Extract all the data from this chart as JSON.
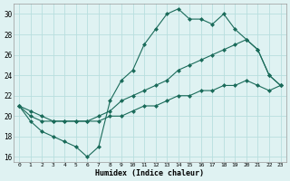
{
  "xlabel": "Humidex (Indice chaleur)",
  "bg_color": "#dff2f2",
  "grid_color": "#b8dede",
  "line_color": "#1a6b5a",
  "xlim": [
    -0.5,
    23.5
  ],
  "ylim": [
    15.5,
    31.0
  ],
  "xticks": [
    0,
    1,
    2,
    3,
    4,
    5,
    6,
    7,
    8,
    9,
    10,
    11,
    12,
    13,
    14,
    15,
    16,
    17,
    18,
    19,
    20,
    21,
    22,
    23
  ],
  "yticks": [
    16,
    18,
    20,
    22,
    24,
    26,
    28,
    30
  ],
  "line1_x": [
    0,
    1,
    2,
    3,
    4,
    5,
    6,
    7,
    8,
    9,
    10,
    11,
    12,
    13,
    14,
    15,
    16,
    17,
    18,
    19,
    20,
    21,
    22,
    23
  ],
  "line1_y": [
    21.0,
    19.5,
    18.5,
    18.0,
    17.5,
    17.0,
    16.0,
    17.0,
    21.5,
    23.5,
    24.5,
    27.0,
    28.5,
    30.0,
    30.5,
    29.5,
    29.5,
    29.0,
    30.0,
    28.5,
    27.5,
    26.5,
    24.0,
    23.0
  ],
  "line2_x": [
    0,
    1,
    2,
    3,
    4,
    5,
    6,
    7,
    8,
    9,
    10,
    11,
    12,
    13,
    14,
    15,
    16,
    17,
    18,
    19,
    20,
    21,
    22,
    23
  ],
  "line2_y": [
    21.0,
    20.0,
    19.5,
    19.5,
    19.5,
    19.5,
    19.5,
    20.0,
    20.5,
    21.5,
    22.0,
    22.5,
    23.0,
    23.5,
    24.5,
    25.0,
    25.5,
    26.0,
    26.5,
    27.0,
    27.5,
    26.5,
    24.0,
    23.0
  ],
  "line3_x": [
    0,
    1,
    2,
    3,
    4,
    5,
    6,
    7,
    8,
    9,
    10,
    11,
    12,
    13,
    14,
    15,
    16,
    17,
    18,
    19,
    20,
    21,
    22,
    23
  ],
  "line3_y": [
    21.0,
    20.5,
    20.0,
    19.5,
    19.5,
    19.5,
    19.5,
    19.5,
    20.0,
    20.0,
    20.5,
    21.0,
    21.0,
    21.5,
    22.0,
    22.0,
    22.5,
    22.5,
    23.0,
    23.0,
    23.5,
    23.0,
    22.5,
    23.0
  ]
}
